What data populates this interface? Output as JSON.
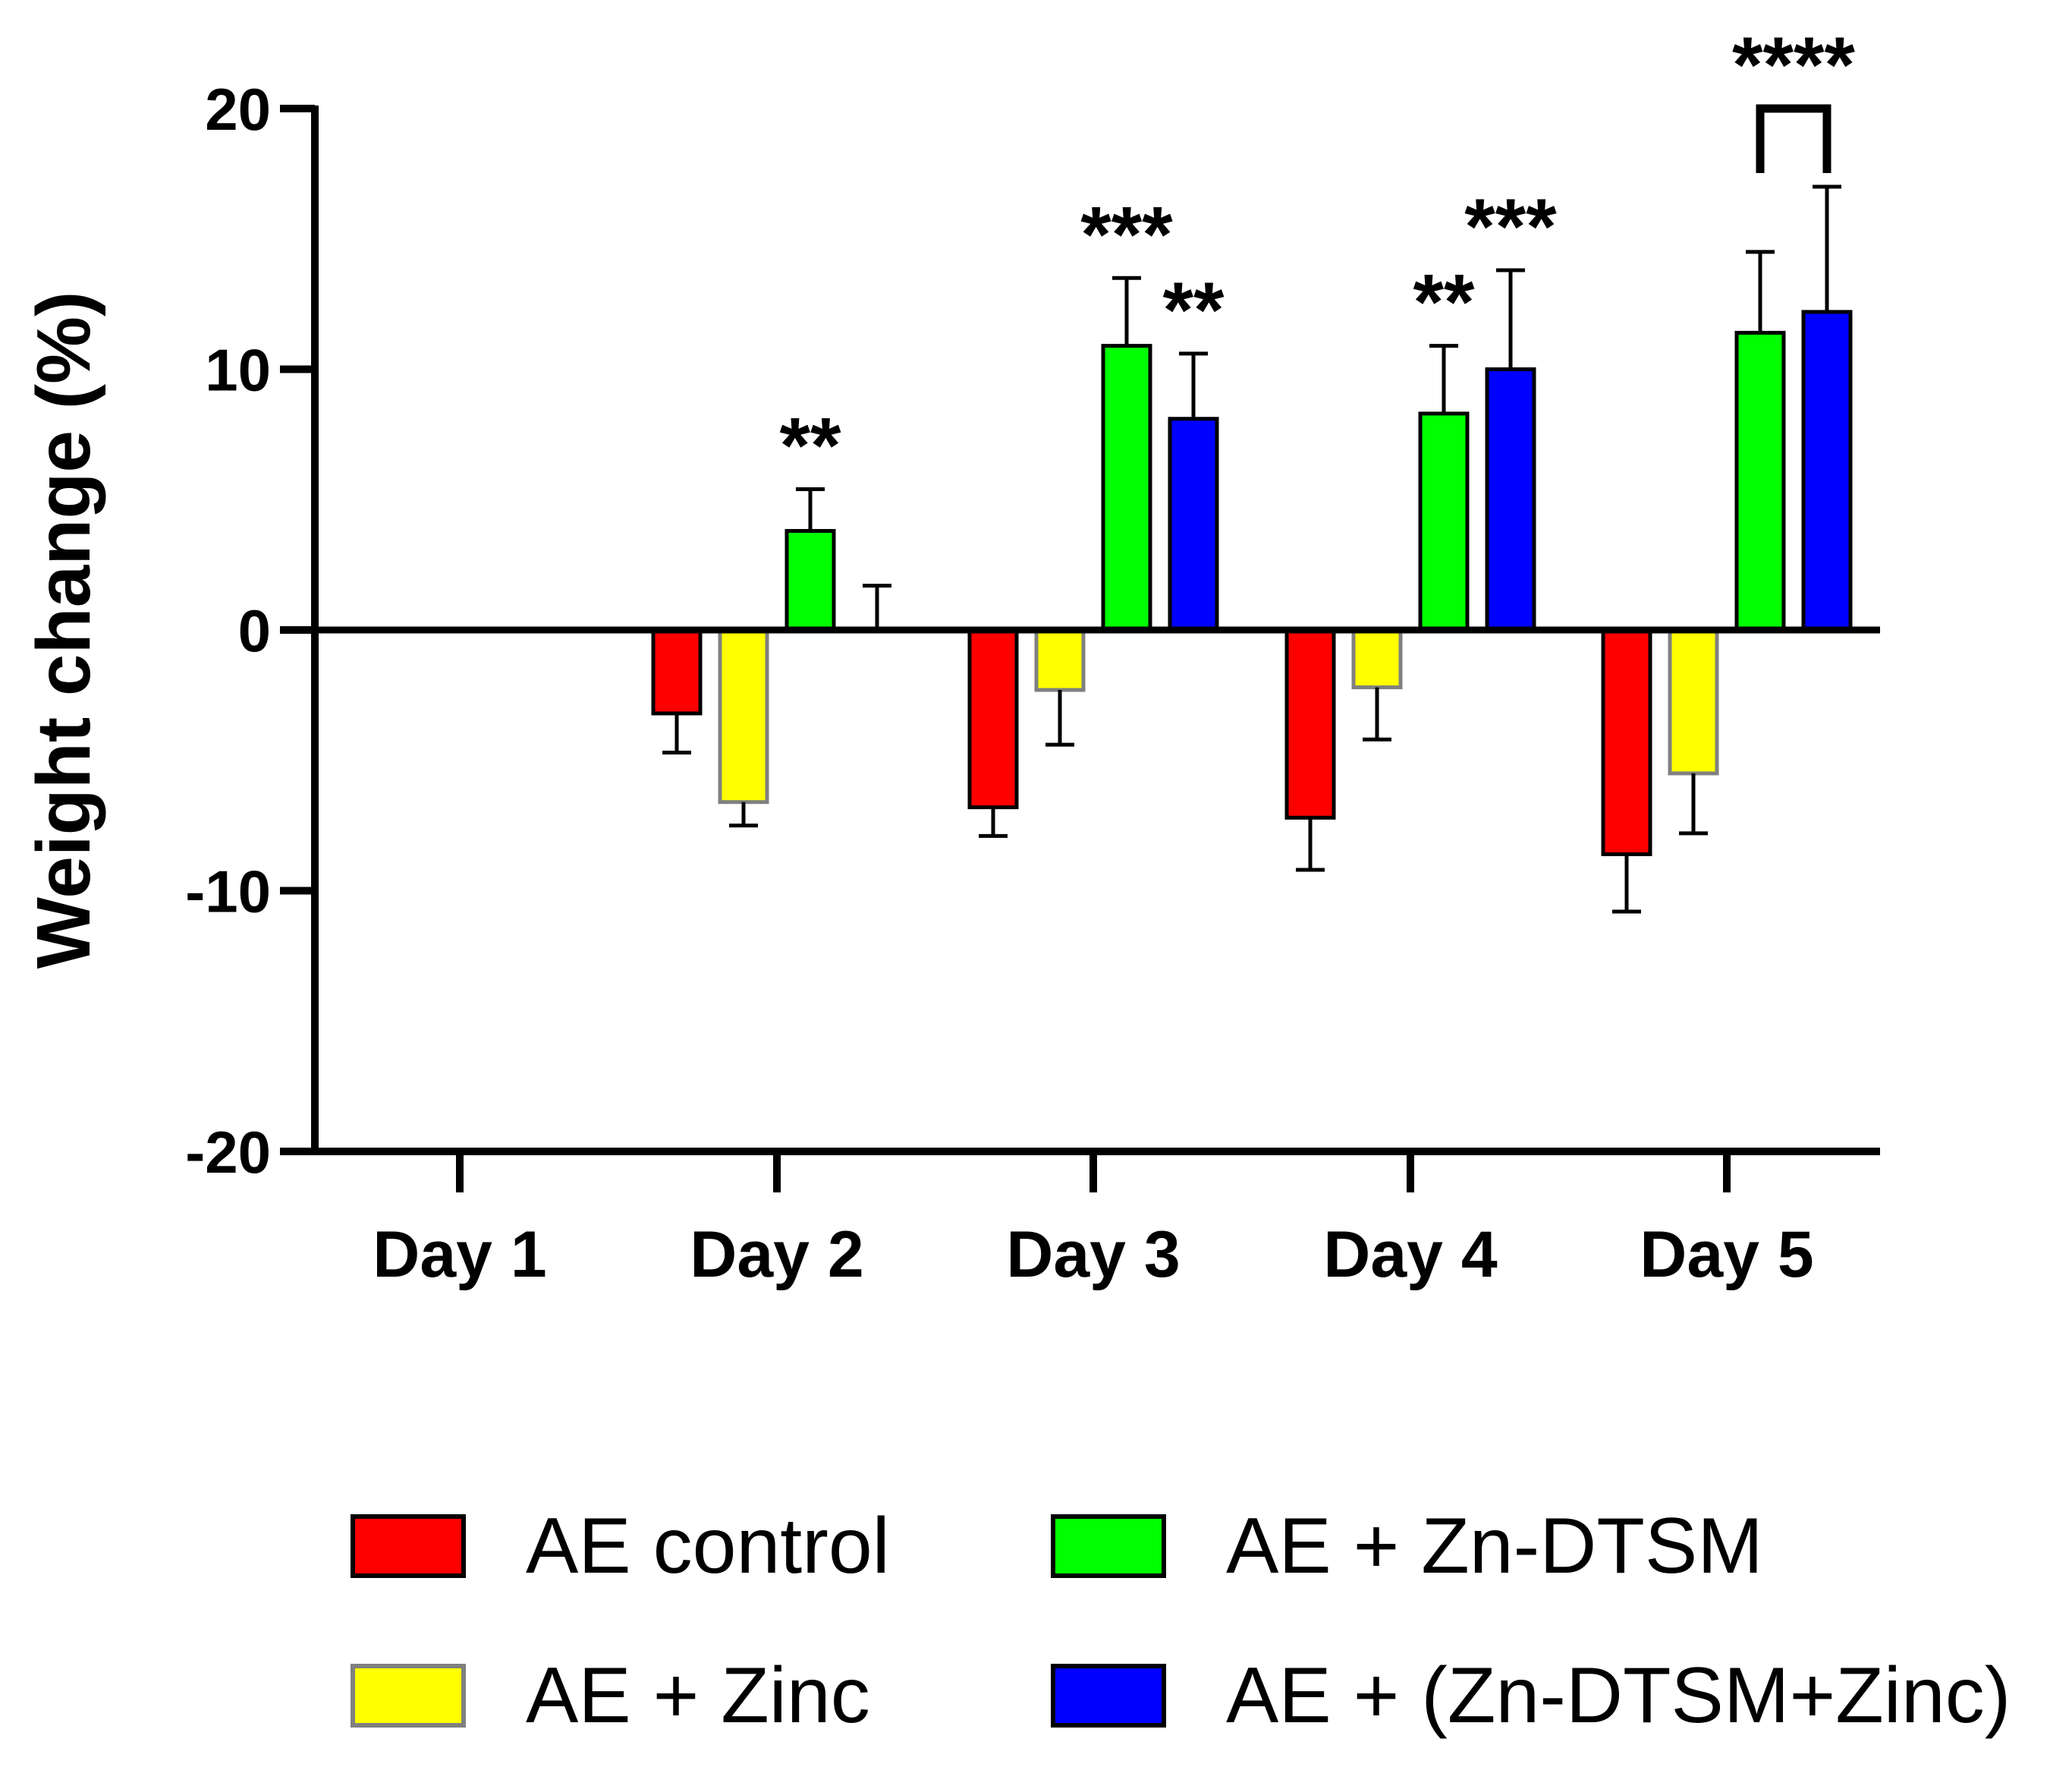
{
  "chart_data": {
    "type": "bar",
    "title": "",
    "xlabel": "",
    "ylabel": "Weight change (%)",
    "ylim": [
      -20,
      20
    ],
    "yticks": [
      -20,
      -10,
      0,
      10,
      20
    ],
    "categories": [
      "Day 1",
      "Day 2",
      "Day 3",
      "Day 4",
      "Day 5"
    ],
    "series": [
      {
        "name": "AE control",
        "color": "#ff0000",
        "edge": "#000000",
        "values": [
          0,
          -3.2,
          -6.8,
          -7.2,
          -8.6
        ],
        "errors": [
          0,
          1.5,
          1.1,
          2.0,
          2.2
        ]
      },
      {
        "name": "AE + Zinc",
        "color": "#ffff00",
        "edge": "#808080",
        "values": [
          0,
          -6.6,
          -2.3,
          -2.2,
          -5.5
        ],
        "errors": [
          0,
          0.9,
          2.1,
          2.0,
          2.3
        ]
      },
      {
        "name": "AE + Zn-DTSM",
        "color": "#00ff00",
        "edge": "#000000",
        "values": [
          0,
          3.8,
          10.9,
          8.3,
          11.4
        ],
        "errors": [
          0,
          1.6,
          2.6,
          2.6,
          3.1
        ]
      },
      {
        "name": "AE + (Zn-DTSM+Zinc)",
        "color": "#0000ff",
        "edge": "#000000",
        "values": [
          0,
          0,
          8.1,
          10.0,
          12.2
        ],
        "errors": [
          0,
          1.7,
          2.5,
          3.8,
          4.8
        ]
      }
    ],
    "annotations": [
      {
        "text": "**",
        "category": 1,
        "series": 2
      },
      {
        "text": "***",
        "category": 2,
        "series": 2
      },
      {
        "text": "**",
        "category": 2,
        "series": 3
      },
      {
        "text": "**",
        "category": 3,
        "series": 2
      },
      {
        "text": "***",
        "category": 3,
        "series": 3
      },
      {
        "text": "****",
        "category": 4,
        "series": 3,
        "bracket_from_series": 2,
        "bracket_y": 20
      }
    ],
    "legend": "bottom, two columns"
  }
}
